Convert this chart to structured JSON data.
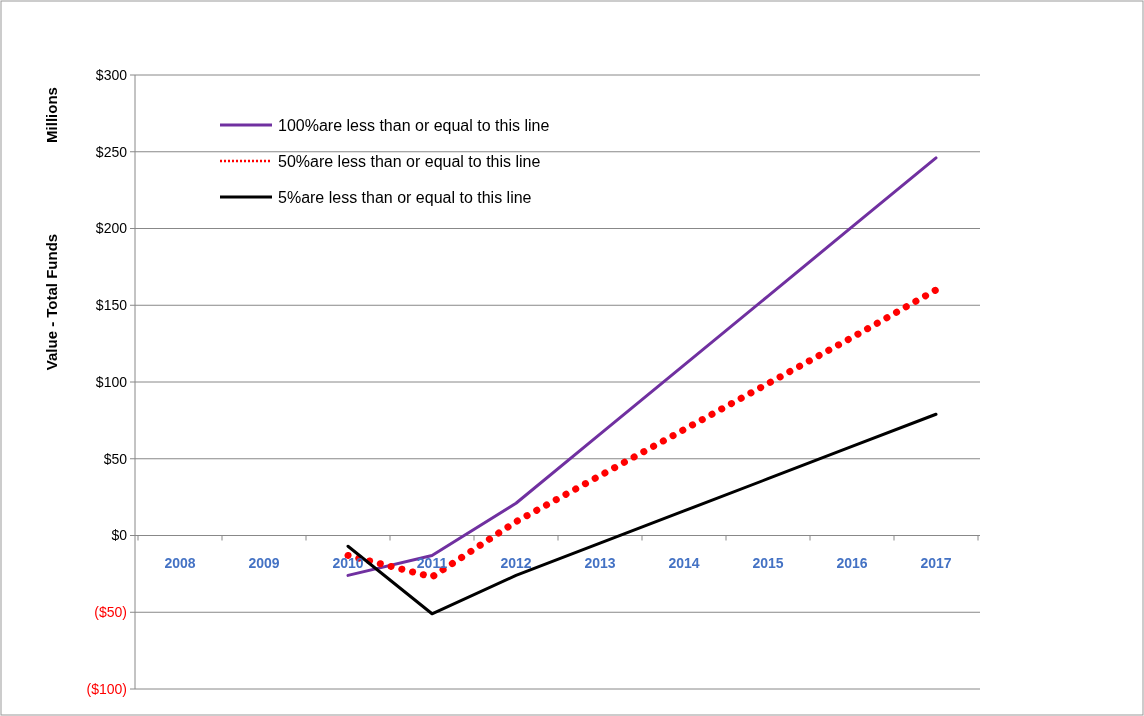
{
  "chart_data": {
    "type": "line",
    "ylabel": "Value - Total Funds",
    "annotations": [
      "Millions"
    ],
    "categories": [
      "2008",
      "2009",
      "2010",
      "2011",
      "2012",
      "2013",
      "2014",
      "2015",
      "2016",
      "2017"
    ],
    "ylim": [
      -100,
      300
    ],
    "yticks": [
      {
        "value": -100,
        "label": "($100)"
      },
      {
        "value": -50,
        "label": "($50)"
      },
      {
        "value": 0,
        "label": "$0"
      },
      {
        "value": 50,
        "label": "$50"
      },
      {
        "value": 100,
        "label": "$100"
      },
      {
        "value": 150,
        "label": "$150"
      },
      {
        "value": 200,
        "label": "$200"
      },
      {
        "value": 250,
        "label": "$250"
      },
      {
        "value": 300,
        "label": "$300"
      }
    ],
    "grid": "y",
    "legend": "top left",
    "marker": "none",
    "series": [
      {
        "name": "100%are less than or equal to this line",
        "color": "#7030a0",
        "line_style": "solid",
        "values": [
          null,
          null,
          -26,
          -13,
          21,
          66,
          111,
          156,
          201,
          246
        ]
      },
      {
        "name": "50%are less than or equal to this line",
        "color": "#ff0000",
        "line_style": "dotted",
        "values": [
          null,
          null,
          -13,
          -27,
          9,
          39,
          69,
          99,
          129,
          160
        ]
      },
      {
        "name": "5%are less than or equal to this line",
        "color": "#000000",
        "line_style": "solid",
        "values": [
          null,
          null,
          -7,
          -51,
          -26,
          -5,
          16,
          37,
          58,
          79
        ]
      }
    ]
  }
}
